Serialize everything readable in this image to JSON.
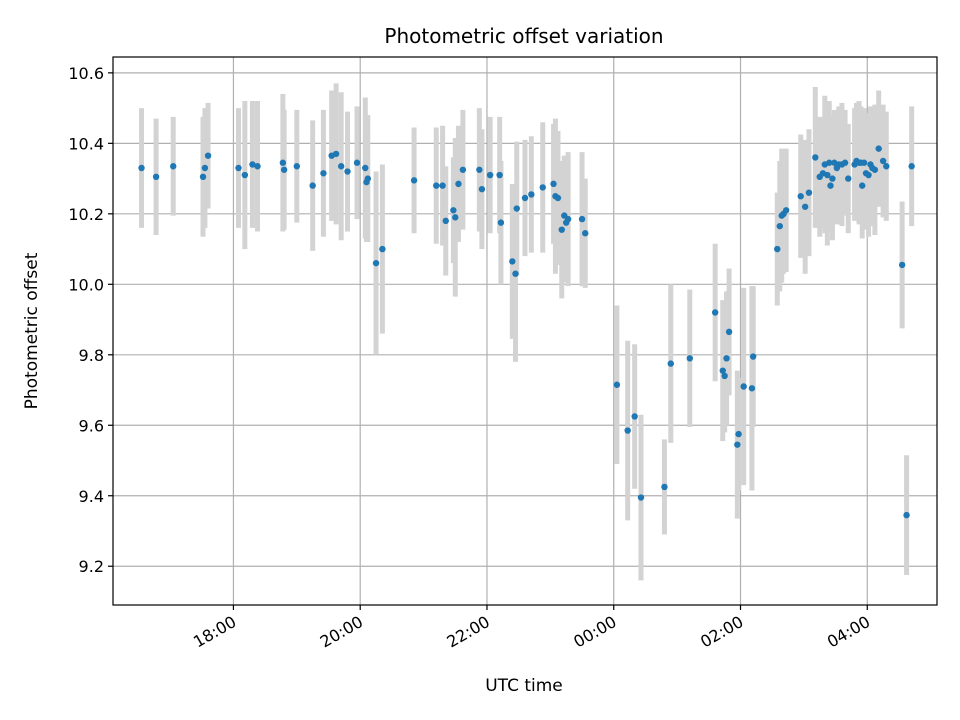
{
  "chart_data": {
    "type": "scatter",
    "title": "Photometric offset variation",
    "xlabel": "UTC time",
    "ylabel": "Photometric offset",
    "xlim_hours": [
      16.1,
      29.1
    ],
    "ylim": [
      9.09,
      10.645
    ],
    "x_ticks": [
      {
        "hour": 18,
        "label": "18:00"
      },
      {
        "hour": 20,
        "label": "20:00"
      },
      {
        "hour": 22,
        "label": "22:00"
      },
      {
        "hour": 24,
        "label": "00:00"
      },
      {
        "hour": 26,
        "label": "02:00"
      },
      {
        "hour": 28,
        "label": "04:00"
      }
    ],
    "y_ticks": [
      {
        "value": 9.2,
        "label": "9.2"
      },
      {
        "value": 9.4,
        "label": "9.4"
      },
      {
        "value": 9.6,
        "label": "9.6"
      },
      {
        "value": 9.8,
        "label": "9.8"
      },
      {
        "value": 10.0,
        "label": "10.0"
      },
      {
        "value": 10.2,
        "label": "10.2"
      },
      {
        "value": 10.4,
        "label": "10.4"
      },
      {
        "value": 10.6,
        "label": "10.6"
      }
    ],
    "grid": true,
    "marker_color": "#1f77b4",
    "errorbar_color": "#d3d3d3",
    "series": [
      {
        "name": "Photometric offset",
        "x_hours": [
          16.55,
          16.78,
          17.05,
          17.52,
          17.55,
          17.6,
          18.08,
          18.18,
          18.3,
          18.38,
          18.78,
          18.8,
          19.0,
          19.25,
          19.42,
          19.55,
          19.62,
          19.7,
          19.8,
          19.95,
          20.08,
          20.1,
          20.12,
          20.25,
          20.35,
          20.85,
          21.2,
          21.3,
          21.35,
          21.47,
          21.5,
          21.55,
          21.62,
          21.88,
          21.92,
          22.05,
          22.2,
          22.22,
          22.4,
          22.45,
          22.47,
          22.6,
          22.7,
          22.88,
          23.05,
          23.08,
          23.12,
          23.18,
          23.22,
          23.25,
          23.28,
          23.5,
          23.55,
          24.05,
          24.22,
          24.33,
          24.43,
          24.8,
          24.9,
          25.2,
          25.6,
          25.72,
          25.75,
          25.78,
          25.82,
          25.95,
          25.97,
          26.05,
          26.18,
          26.2,
          26.58,
          26.62,
          26.65,
          26.68,
          26.72,
          26.95,
          27.02,
          27.08,
          27.18,
          27.25,
          27.3,
          27.33,
          27.37,
          27.4,
          27.42,
          27.45,
          27.48,
          27.52,
          27.55,
          27.6,
          27.65,
          27.7,
          27.8,
          27.83,
          27.87,
          27.9,
          27.92,
          27.95,
          27.98,
          28.02,
          28.05,
          28.08,
          28.12,
          28.18,
          28.25,
          28.3,
          28.55,
          28.62,
          28.7
        ],
        "y_values": [
          10.33,
          10.305,
          10.335,
          10.305,
          10.33,
          10.365,
          10.33,
          10.31,
          10.34,
          10.335,
          10.345,
          10.325,
          10.335,
          10.28,
          10.315,
          10.365,
          10.37,
          10.335,
          10.32,
          10.345,
          10.33,
          10.29,
          10.3,
          10.06,
          10.1,
          10.295,
          10.28,
          10.28,
          10.18,
          10.21,
          10.19,
          10.285,
          10.325,
          10.325,
          10.27,
          10.31,
          10.31,
          10.175,
          10.065,
          10.03,
          10.215,
          10.245,
          10.255,
          10.275,
          10.285,
          10.25,
          10.245,
          10.155,
          10.195,
          10.175,
          10.185,
          10.185,
          10.145,
          9.715,
          9.585,
          9.625,
          9.395,
          9.425,
          9.775,
          9.79,
          9.92,
          9.755,
          9.74,
          9.79,
          9.865,
          9.545,
          9.575,
          9.71,
          9.705,
          9.795,
          10.1,
          10.165,
          10.195,
          10.2,
          10.21,
          10.25,
          10.22,
          10.26,
          10.36,
          10.305,
          10.315,
          10.34,
          10.31,
          10.345,
          10.28,
          10.3,
          10.345,
          10.33,
          10.34,
          10.34,
          10.345,
          10.3,
          10.34,
          10.35,
          10.345,
          10.345,
          10.28,
          10.345,
          10.315,
          10.31,
          10.34,
          10.33,
          10.325,
          10.385,
          10.35,
          10.335,
          10.055,
          9.345,
          10.335
        ],
        "y_errors": [
          0.17,
          0.165,
          0.14,
          0.17,
          0.17,
          0.15,
          0.17,
          0.21,
          0.18,
          0.185,
          0.195,
          0.17,
          0.16,
          0.185,
          0.18,
          0.185,
          0.2,
          0.21,
          0.17,
          0.16,
          0.2,
          0.17,
          0.18,
          0.26,
          0.24,
          0.15,
          0.165,
          0.17,
          0.155,
          0.15,
          0.225,
          0.165,
          0.17,
          0.175,
          0.17,
          0.165,
          0.165,
          0.175,
          0.22,
          0.25,
          0.19,
          0.165,
          0.165,
          0.185,
          0.17,
          0.22,
          0.19,
          0.195,
          0.17,
          0.17,
          0.19,
          0.19,
          0.155,
          0.225,
          0.255,
          0.205,
          0.235,
          0.135,
          0.225,
          0.195,
          0.195,
          0.2,
          0.16,
          0.19,
          0.18,
          0.21,
          0.16,
          0.28,
          0.29,
          0.2,
          0.16,
          0.185,
          0.19,
          0.17,
          0.175,
          0.175,
          0.19,
          0.18,
          0.2,
          0.17,
          0.155,
          0.195,
          0.2,
          0.175,
          0.13,
          0.175,
          0.15,
          0.16,
          0.165,
          0.175,
          0.15,
          0.155,
          0.16,
          0.165,
          0.175,
          0.16,
          0.15,
          0.155,
          0.16,
          0.175,
          0.165,
          0.165,
          0.185,
          0.165,
          0.16,
          0.155,
          0.18,
          0.17,
          0.17
        ]
      }
    ]
  }
}
